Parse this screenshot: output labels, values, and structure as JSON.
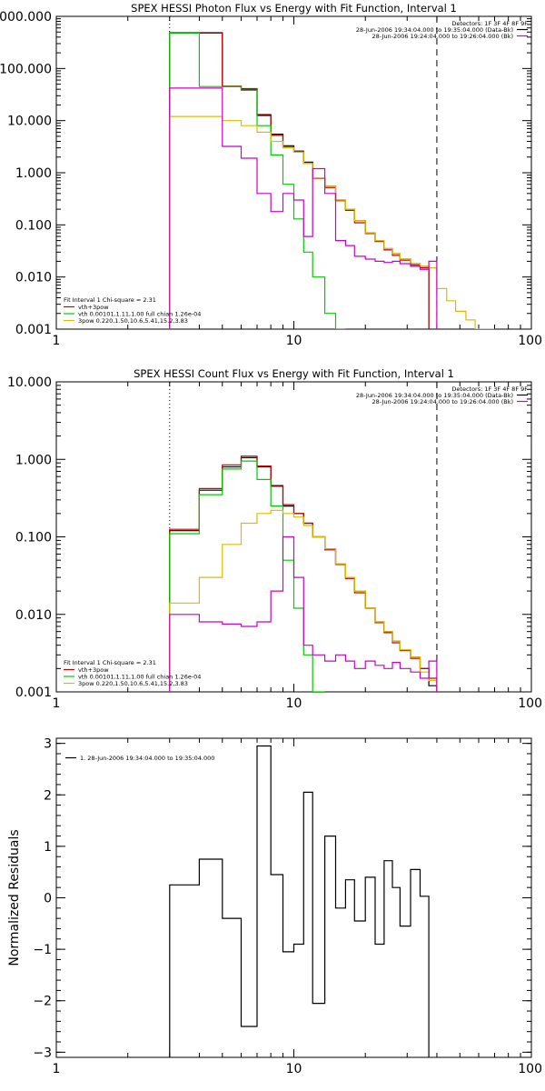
{
  "chart_data": [
    {
      "type": "line",
      "title": "SPEX HESSI Photon Flux vs Energy with Fit Function, Interval 1",
      "xscale": "log",
      "yscale": "log",
      "xlim": [
        1,
        100
      ],
      "ylim": [
        0.001,
        1000
      ],
      "x_ticks": [
        1,
        10,
        100
      ],
      "x_tick_labels": [
        "1",
        "10",
        "100"
      ],
      "y_ticks": [
        0.001,
        0.01,
        0.1,
        1,
        10,
        100,
        1000
      ],
      "y_tick_labels": [
        "0.001",
        "0.010",
        "0.100",
        "1.000",
        "10.000",
        "100.000",
        "1000.000"
      ],
      "info_lines": [
        {
          "text": "Detectors: 1F 3F 4F 8F 9F",
          "color": ""
        },
        {
          "text": "28-Jun-2006 19:34:04.000 to 19:35:04.000 (Data-Bk)",
          "color": "#000000"
        },
        {
          "text": "28-Jun-2006 19:24:04.000 to 19:26:04.000 (Bk)",
          "color": "#cc00cc"
        }
      ],
      "legend_header": "Fit Interval 1    Chi-square = 2.31",
      "legend": [
        {
          "text": "vth+3pow",
          "color": "#cc0000"
        },
        {
          "text": "vth 0.00101,1.11,1.00  full chian 1.26e-04",
          "color": "#00cc00"
        },
        {
          "text": "3pow 0.220,1.50,10.6,5.41,15.2,3.83",
          "color": "#ddbb00"
        }
      ],
      "vlines": [
        {
          "x": 3,
          "style": "dotted"
        },
        {
          "x": 40,
          "style": "dashed"
        }
      ],
      "edges": [
        3,
        4,
        5,
        6,
        7,
        8,
        9,
        10,
        11,
        12,
        13.5,
        15,
        16.5,
        18,
        20,
        22,
        24,
        26,
        28,
        31,
        34,
        37,
        40,
        44,
        48,
        53,
        58,
        64,
        70
      ],
      "series": [
        {
          "name": "data",
          "color": "#000000",
          "values": [
            480,
            480,
            45,
            40,
            13,
            5.5,
            3.3,
            2.6,
            1.6,
            0.8,
            0.55,
            0.3,
            0.2,
            0.12,
            0.07,
            0.05,
            0.035,
            0.028,
            0.022,
            0.018,
            0.016
          ]
        },
        {
          "name": "vth+3pow",
          "color": "#cc0000",
          "values": [
            490,
            490,
            46,
            41,
            12.5,
            5.2,
            3.1,
            2.5,
            1.5,
            0.78,
            0.52,
            0.29,
            0.19,
            0.11,
            0.068,
            0.048,
            0.033,
            0.026,
            0.021,
            0.017,
            0.015
          ]
        },
        {
          "name": "vth",
          "color": "#00cc00",
          "values": [
            480,
            45,
            45,
            38,
            8,
            2.2,
            0.6,
            0.13,
            0.03,
            0.01,
            0.002,
            0.0008
          ]
        },
        {
          "name": "3pow",
          "color": "#ddbb00",
          "values": [
            12,
            12,
            10,
            8,
            6,
            4,
            3,
            2.5,
            1.5,
            0.8,
            0.55,
            0.3,
            0.2,
            0.12,
            0.07,
            0.05,
            0.035,
            0.028,
            0.022,
            0.018,
            0.016,
            0.015,
            0.006,
            0.0035,
            0.0022,
            0.0015,
            0.001,
            0.0008
          ]
        },
        {
          "name": "Bk",
          "color": "#cc00cc",
          "values": [
            42,
            42,
            3.2,
            1.9,
            0.4,
            0.18,
            0.4,
            0.3,
            0.06,
            1.2,
            0.4,
            0.05,
            0.04,
            0.025,
            0.022,
            0.02,
            0.019,
            0.02,
            0.018,
            0.016,
            0.014,
            0.02
          ]
        }
      ]
    },
    {
      "type": "line",
      "title": "SPEX HESSI Count Flux vs Energy with Fit Function, Interval 1",
      "xscale": "log",
      "yscale": "log",
      "xlim": [
        1,
        100
      ],
      "ylim": [
        0.001,
        10
      ],
      "x_ticks": [
        1,
        10,
        100
      ],
      "x_tick_labels": [
        "1",
        "10",
        "100"
      ],
      "y_ticks": [
        0.001,
        0.01,
        0.1,
        1,
        10
      ],
      "y_tick_labels": [
        "0.001",
        "0.010",
        "0.100",
        "1.000",
        "10.000"
      ],
      "info_lines": [
        {
          "text": "Detectors: 1F 3F 4F 8F 9F",
          "color": ""
        },
        {
          "text": "28-Jun-2006 19:34:04.000 to 19:35:04.000 (Data-Bk)",
          "color": "#000000"
        },
        {
          "text": "28-Jun-2006 19:24:04.000 to 19:26:04.000 (Bk)",
          "color": "#cc00cc"
        }
      ],
      "legend_header": "Fit Interval 1    Chi-square = 2.31",
      "legend": [
        {
          "text": "vth+3pow",
          "color": "#cc0000"
        },
        {
          "text": "vth 0.00101,1.11,1.00  full chian 1.26e-04",
          "color": "#00cc00"
        },
        {
          "text": "3pow 0.220,1.50,10.6,5.41,15.2,3.83",
          "color": "#ddbb00"
        }
      ],
      "vlines": [
        {
          "x": 3,
          "style": "dotted"
        },
        {
          "x": 40,
          "style": "dashed"
        }
      ],
      "edges": [
        3,
        4,
        5,
        6,
        7,
        8,
        9,
        10,
        11,
        12,
        13.5,
        15,
        16.5,
        18,
        20,
        22,
        24,
        26,
        28,
        31,
        34,
        37,
        40
      ],
      "series": [
        {
          "name": "data",
          "color": "#000000",
          "values": [
            0.12,
            0.4,
            0.8,
            1.05,
            0.8,
            0.45,
            0.25,
            0.2,
            0.15,
            0.1,
            0.07,
            0.045,
            0.03,
            0.02,
            0.012,
            0.008,
            0.006,
            0.0045,
            0.0035,
            0.0028,
            0.002,
            0.0012
          ]
        },
        {
          "name": "vth+3pow",
          "color": "#cc0000",
          "values": [
            0.125,
            0.42,
            0.85,
            1.1,
            0.82,
            0.46,
            0.26,
            0.2,
            0.15,
            0.1,
            0.068,
            0.044,
            0.029,
            0.019,
            0.012,
            0.0078,
            0.0058,
            0.0043,
            0.0034,
            0.0027,
            0.002,
            0.0015
          ]
        },
        {
          "name": "vth",
          "color": "#00cc00",
          "values": [
            0.11,
            0.35,
            0.75,
            0.95,
            0.55,
            0.25,
            0.05,
            0.012,
            0.003,
            0.001
          ]
        },
        {
          "name": "3pow",
          "color": "#ddbb00",
          "values": [
            0.014,
            0.03,
            0.08,
            0.15,
            0.2,
            0.22,
            0.2,
            0.18,
            0.14,
            0.1,
            0.07,
            0.045,
            0.03,
            0.02,
            0.012,
            0.008,
            0.006,
            0.0045,
            0.0035,
            0.0028,
            0.0018,
            0.0014
          ]
        },
        {
          "name": "Bk",
          "color": "#cc00cc",
          "values": [
            0.01,
            0.008,
            0.0075,
            0.007,
            0.008,
            0.02,
            0.1,
            0.03,
            0.004,
            0.003,
            0.0025,
            0.003,
            0.0025,
            0.002,
            0.0025,
            0.0022,
            0.002,
            0.0024,
            0.002,
            0.0018,
            0.0015,
            0.0025
          ]
        }
      ]
    },
    {
      "type": "line",
      "title": "",
      "ylabel": "Normalized Residuals",
      "xscale": "log",
      "yscale": "linear",
      "xlim": [
        1,
        100
      ],
      "ylim": [
        -3.1,
        3.1
      ],
      "x_ticks": [
        1,
        10,
        100
      ],
      "x_tick_labels": [
        "1",
        "10",
        "100"
      ],
      "y_ticks": [
        -3,
        -2,
        -1,
        0,
        1,
        2,
        3
      ],
      "y_tick_labels": [
        "−3",
        "−2",
        "−1",
        "0",
        "1",
        "2",
        "3"
      ],
      "legend": [
        {
          "text": "1. 28-Jun-2006 19:34:04.000 to 19:35:04.000",
          "color": "#000000"
        }
      ],
      "edges": [
        3,
        4,
        5,
        6,
        7,
        8,
        9,
        10,
        11,
        12,
        13.5,
        15,
        16.5,
        18,
        20,
        22,
        24,
        26,
        28,
        31,
        34,
        37,
        40
      ],
      "series": [
        {
          "name": "residuals",
          "color": "#000000",
          "values": [
            0.25,
            0.75,
            -0.4,
            -2.5,
            2.95,
            0.45,
            -1.05,
            -0.9,
            2.05,
            -2.05,
            1.2,
            -0.2,
            0.35,
            -0.45,
            0.4,
            -0.9,
            0.72,
            0.2,
            -0.55,
            0.55,
            0.03
          ]
        }
      ]
    }
  ]
}
